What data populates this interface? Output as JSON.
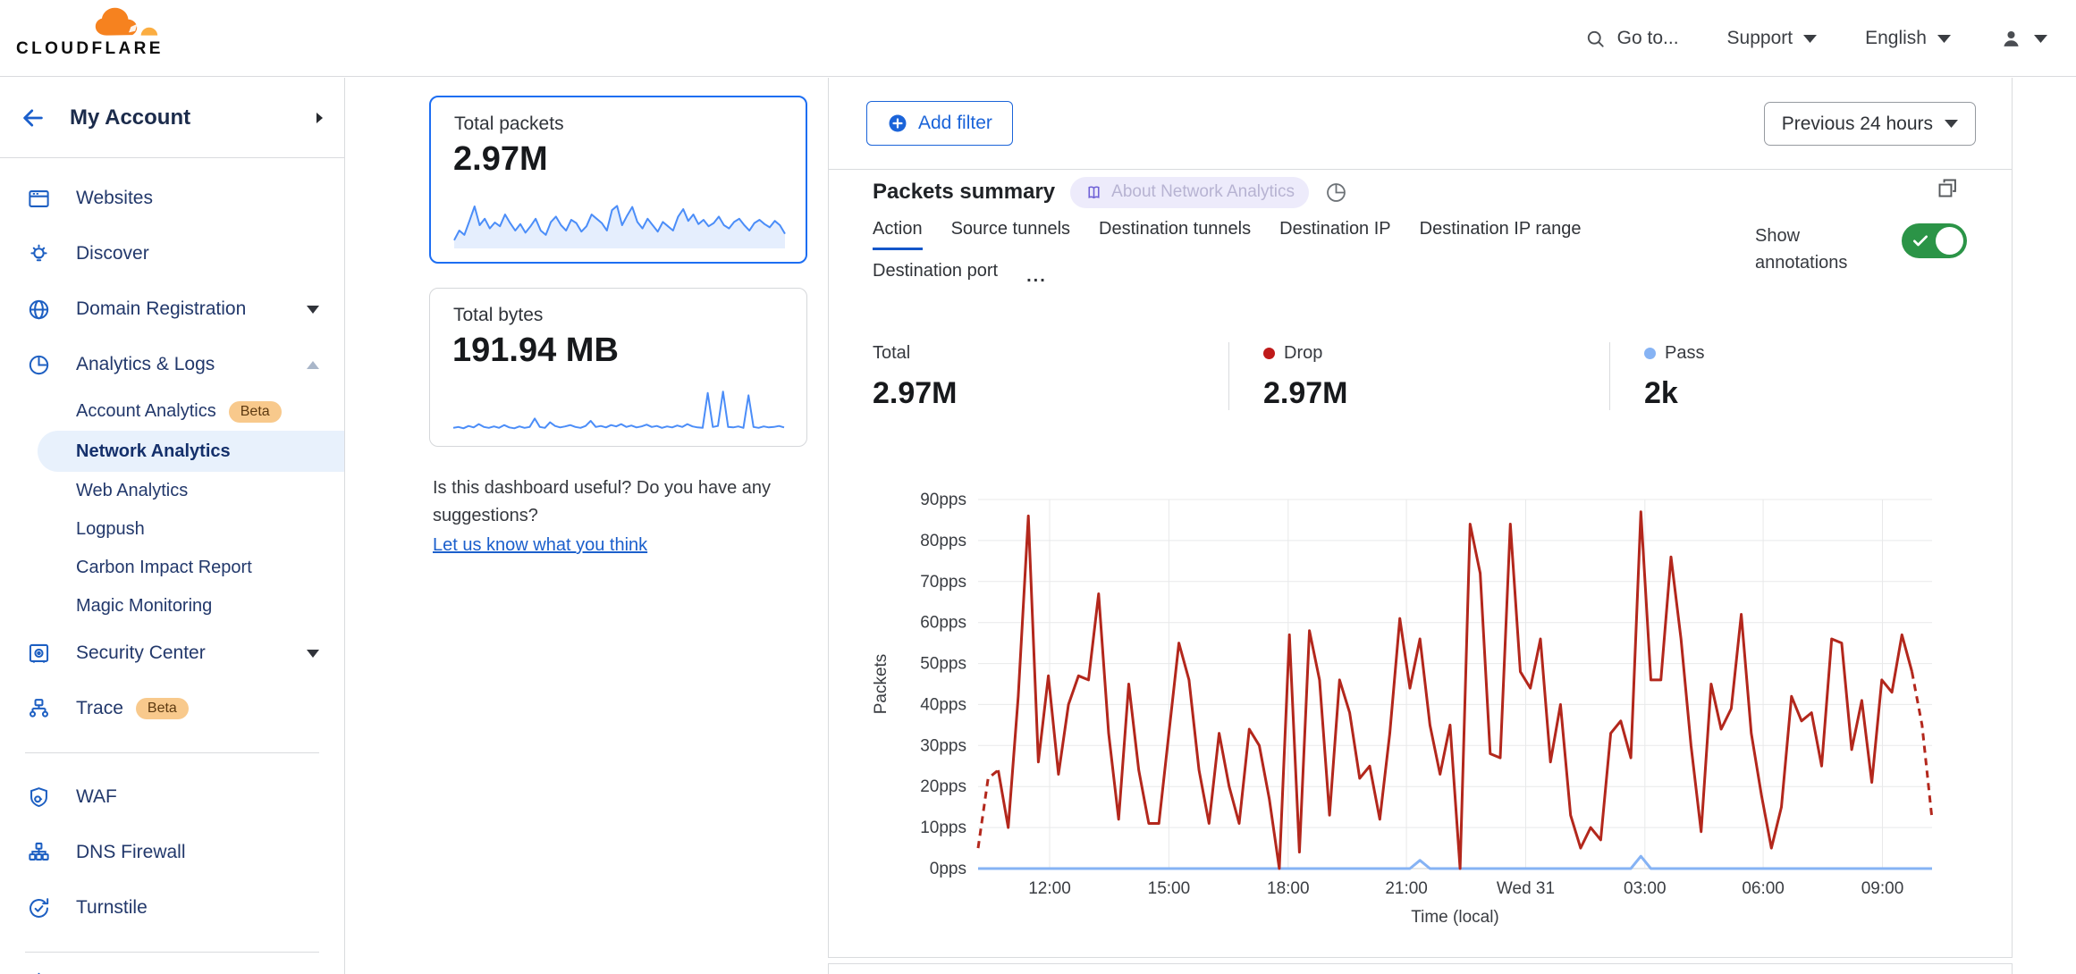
{
  "header": {
    "logo_text": "CLOUDFLARE",
    "goto_label": "Go to...",
    "support_label": "Support",
    "language_label": "English"
  },
  "sidebar": {
    "account_label": "My Account",
    "items": [
      {
        "label": "Websites",
        "icon": "websites"
      },
      {
        "label": "Discover",
        "icon": "discover"
      },
      {
        "label": "Domain Registration",
        "icon": "globe",
        "caret": "down"
      },
      {
        "label": "Analytics & Logs",
        "icon": "analytics",
        "caret": "up",
        "expanded": true
      },
      {
        "label": "Account Analytics",
        "sub": true,
        "badge": "Beta"
      },
      {
        "label": "Network Analytics",
        "sub": true,
        "selected": true
      },
      {
        "label": "Web Analytics",
        "sub": true
      },
      {
        "label": "Logpush",
        "sub": true
      },
      {
        "label": "Carbon Impact Report",
        "sub": true
      },
      {
        "label": "Magic Monitoring",
        "sub": true
      },
      {
        "label": "Security Center",
        "icon": "security",
        "caret": "down"
      },
      {
        "label": "Trace",
        "icon": "trace",
        "badge": "Beta"
      },
      {
        "divider": true
      },
      {
        "label": "WAF",
        "icon": "waf"
      },
      {
        "label": "DNS Firewall",
        "icon": "dnsfw"
      },
      {
        "label": "Turnstile",
        "icon": "turnstile"
      },
      {
        "divider": true
      },
      {
        "label": "",
        "icon": "partial",
        "partial": true
      }
    ]
  },
  "summary_cards": [
    {
      "label": "Total packets",
      "value": "2.97M",
      "selected": true,
      "sparkline": [
        12,
        30,
        22,
        48,
        75,
        40,
        52,
        34,
        45,
        38,
        60,
        44,
        30,
        42,
        26,
        38,
        52,
        30,
        22,
        46,
        56,
        40,
        30,
        50,
        44,
        28,
        38,
        60,
        52,
        44,
        30,
        68,
        76,
        40,
        58,
        74,
        46,
        34,
        52,
        40,
        28,
        46,
        38,
        30,
        56,
        70,
        48,
        60,
        42,
        50,
        38,
        44,
        56,
        40,
        34,
        46,
        52,
        40,
        30,
        44,
        50,
        42,
        36,
        48,
        40,
        24
      ]
    },
    {
      "label": "Total bytes",
      "value": "191.94 MB",
      "selected": false,
      "sparkline": [
        10,
        12,
        9,
        14,
        11,
        18,
        12,
        10,
        13,
        10,
        16,
        11,
        9,
        13,
        10,
        12,
        30,
        12,
        10,
        22,
        14,
        11,
        13,
        16,
        12,
        10,
        14,
        25,
        12,
        14,
        11,
        16,
        13,
        18,
        12,
        15,
        11,
        13,
        17,
        12,
        14,
        10,
        13,
        11,
        15,
        12,
        18,
        13,
        11,
        10,
        85,
        12,
        14,
        88,
        12,
        11,
        13,
        10,
        80,
        12,
        10,
        13,
        11,
        12,
        14,
        11
      ]
    }
  ],
  "feedback": {
    "question": "Is this dashboard useful? Do you have any suggestions?",
    "link_label": "Let us know what you think"
  },
  "main": {
    "add_filter_label": "Add filter",
    "time_range_label": "Previous 24 hours",
    "panel_title": "Packets summary",
    "about_badge_label": "About Network Analytics",
    "tabs": [
      "Action",
      "Source tunnels",
      "Destination tunnels",
      "Destination IP",
      "Destination IP range",
      "Destination port"
    ],
    "active_tab": "Action",
    "tabs_overflow_label": "...",
    "show_annotations_label": "Show annotations",
    "annotations_on": true,
    "stats": [
      {
        "label": "Total",
        "value": "2.97M",
        "dot_color": null
      },
      {
        "label": "Drop",
        "value": "2.97M",
        "dot_color": "#bf1a1a"
      },
      {
        "label": "Pass",
        "value": "2k",
        "dot_color": "#86b3f4"
      }
    ]
  },
  "chart_data": {
    "type": "line",
    "title": "Packets summary",
    "xlabel": "Time (local)",
    "ylabel": "Packets",
    "unit": "pps",
    "ylim": [
      0,
      90
    ],
    "grid": true,
    "legend_position": "none",
    "y_ticks": [
      "0pps",
      "10pps",
      "20pps",
      "30pps",
      "40pps",
      "50pps",
      "60pps",
      "70pps",
      "80pps",
      "90pps"
    ],
    "x_ticks": [
      "12:00",
      "15:00",
      "18:00",
      "21:00",
      "Wed 31",
      "03:00",
      "06:00",
      "09:00"
    ],
    "series": [
      {
        "name": "Drop",
        "color": "#b3271c",
        "dashed_ends": true,
        "values": [
          5,
          22,
          24,
          10,
          42,
          86,
          26,
          47,
          23,
          40,
          47,
          46,
          67,
          33,
          12,
          45,
          24,
          11,
          11,
          33,
          55,
          46,
          24,
          11,
          33,
          20,
          11,
          34,
          30,
          17,
          0,
          57,
          4,
          58,
          46,
          13,
          46,
          38,
          22,
          25,
          12,
          33,
          61,
          44,
          56,
          35,
          23,
          35,
          0,
          84,
          72,
          28,
          27,
          84,
          48,
          44,
          56,
          26,
          40,
          13,
          5,
          10,
          7,
          33,
          36,
          27,
          87,
          46,
          46,
          76,
          56,
          30,
          9,
          45,
          34,
          39,
          62,
          33,
          18,
          5,
          15,
          42,
          36,
          38,
          25,
          56,
          55,
          29,
          41,
          21,
          46,
          43,
          57,
          48,
          35,
          12
        ]
      },
      {
        "name": "Pass",
        "color": "#86b3f4",
        "values": [
          0,
          0,
          0,
          0,
          0,
          0,
          0,
          0,
          0,
          0,
          0,
          0,
          0,
          0,
          0,
          0,
          0,
          0,
          0,
          0,
          0,
          0,
          0,
          0,
          0,
          0,
          0,
          0,
          0,
          0,
          0,
          0,
          0,
          0,
          0,
          0,
          0,
          0,
          0,
          0,
          0,
          0,
          0,
          0,
          2,
          0,
          0,
          0,
          0,
          0,
          0,
          0,
          0,
          0,
          0,
          0,
          0,
          0,
          0,
          0,
          0,
          0,
          0,
          0,
          0,
          0,
          3,
          0,
          0,
          0,
          0,
          0,
          0,
          0,
          0,
          0,
          0,
          0,
          0,
          0,
          0,
          0,
          0,
          0,
          0,
          0,
          0,
          0,
          0,
          0,
          0,
          0,
          0,
          0,
          0,
          0
        ]
      }
    ]
  }
}
